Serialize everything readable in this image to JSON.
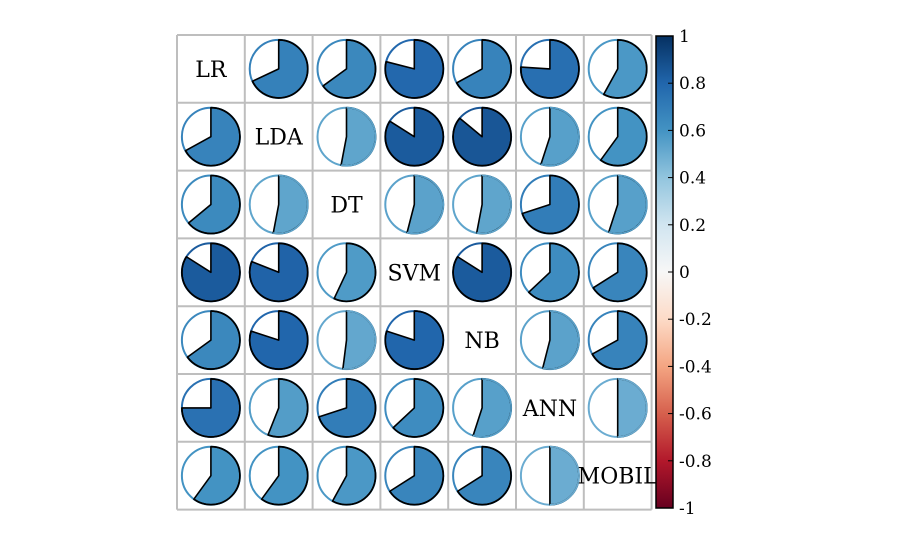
{
  "chart_data": {
    "type": "pie",
    "variables": [
      "LR",
      "LDA",
      "DT",
      "SVM",
      "NB",
      "ANN",
      "MOBIL"
    ],
    "matrix": [
      [
        1.0,
        0.68,
        0.65,
        0.79,
        0.67,
        0.76,
        0.58
      ],
      [
        0.67,
        1.0,
        0.53,
        0.84,
        0.86,
        0.55,
        0.6
      ],
      [
        0.64,
        0.53,
        1.0,
        0.54,
        0.53,
        0.7,
        0.55
      ],
      [
        0.84,
        0.81,
        0.57,
        1.0,
        0.84,
        0.63,
        0.66
      ],
      [
        0.65,
        0.8,
        0.52,
        0.8,
        1.0,
        0.54,
        0.67
      ],
      [
        0.75,
        0.56,
        0.7,
        0.63,
        0.55,
        1.0,
        0.5
      ],
      [
        0.6,
        0.6,
        0.58,
        0.66,
        0.66,
        0.5,
        1.0
      ]
    ],
    "diagonal": "labels",
    "colorbar": {
      "ticks": [
        "1",
        "0.8",
        "0.6",
        "0.4",
        "0.2",
        "0",
        "-0.2",
        "-0.4",
        "-0.6",
        "-0.8",
        "-1"
      ],
      "range": [
        -1,
        1
      ]
    },
    "colors": {
      "strong_pos": "#053061",
      "pos": "#2166AC",
      "mid_pos": "#4393C3",
      "light_pos": "#92C5DE",
      "pale_pos": "#D1E5F0",
      "zero": "#F7F7F7",
      "pale_neg": "#FDDBC7",
      "light_neg": "#F4A582",
      "mid_neg": "#D6604D",
      "neg": "#B2182B",
      "strong_neg": "#67001F",
      "grid": "#BEBEBE"
    }
  }
}
